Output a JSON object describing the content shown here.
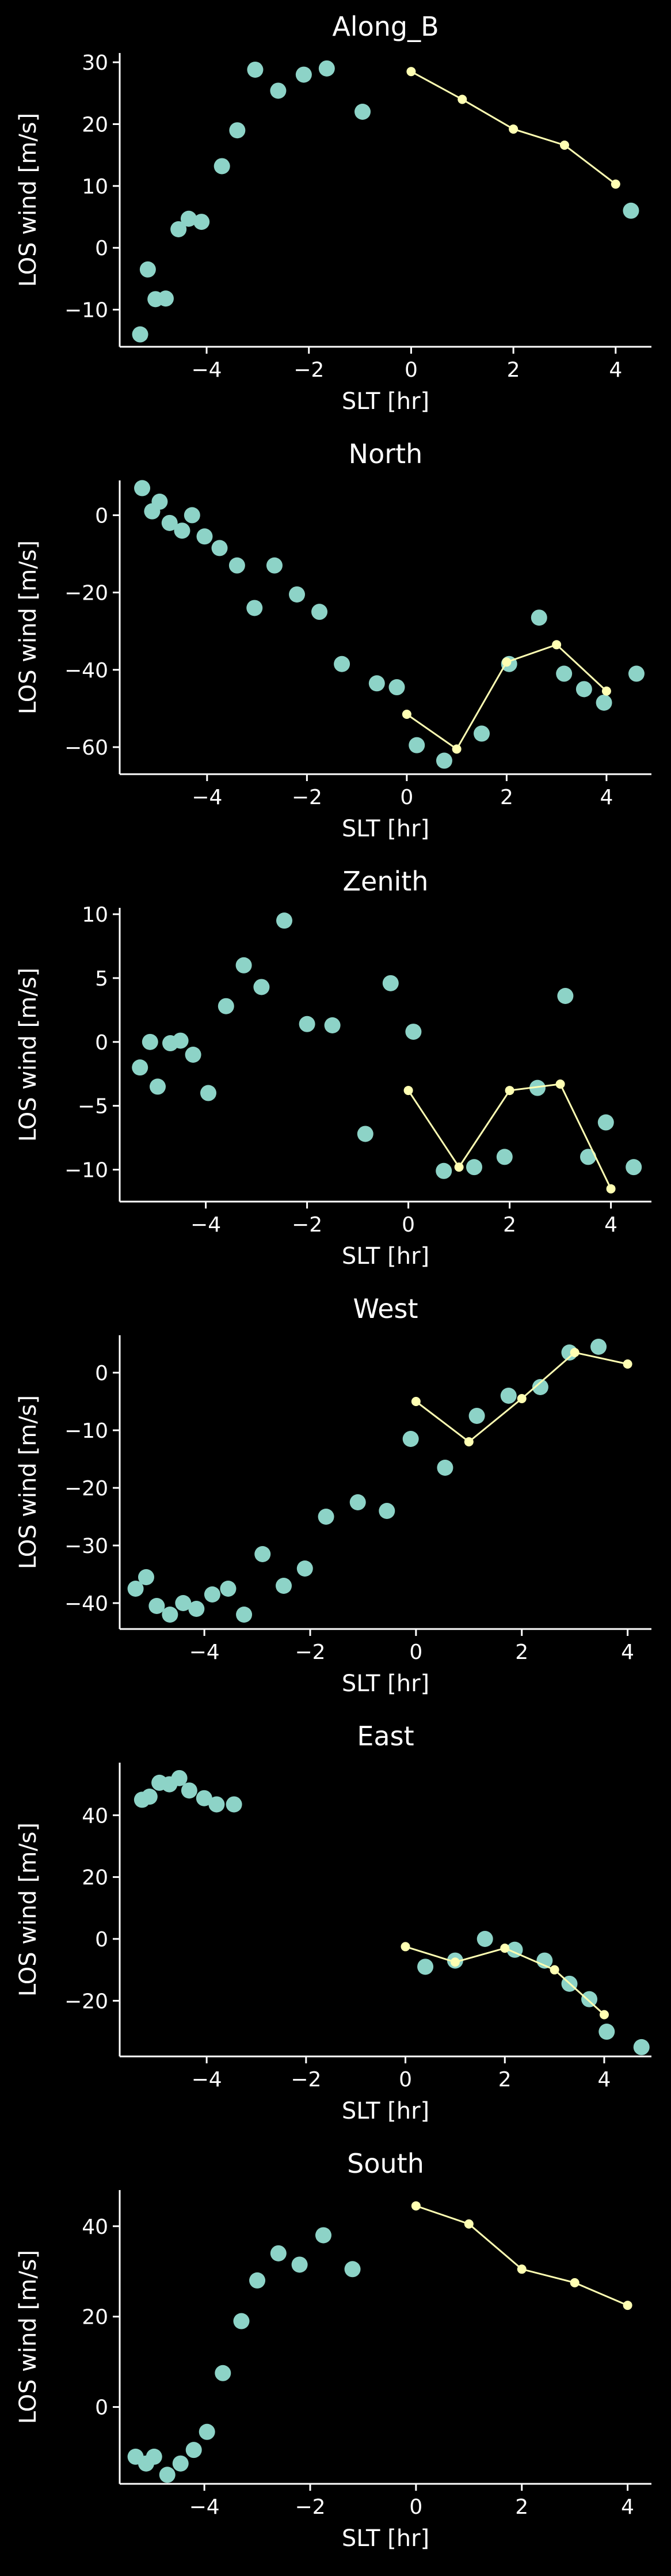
{
  "colors": {
    "background": "#000000",
    "axes": "#ffffff",
    "scatter": "#8dd3c7",
    "line": "#ffffb3"
  },
  "chart_data": [
    {
      "type": "scatter",
      "title": "Along_B",
      "xlabel": "SLT [hr]",
      "ylabel": "LOS wind [m/s]",
      "xlim": [
        -5.7,
        4.7
      ],
      "ylim": [
        -16,
        31.5
      ],
      "xticks": [
        -4,
        -2,
        0,
        2,
        4
      ],
      "yticks": [
        -10,
        0,
        10,
        20,
        30
      ],
      "grid": false,
      "series": [
        {
          "mode": "markers",
          "x": [
            -5.3,
            -5.15,
            -5.0,
            -4.8,
            -4.55,
            -4.35,
            -4.1,
            -3.7,
            -3.4,
            -3.05,
            -2.6,
            -2.1,
            -1.65,
            -0.95,
            4.3
          ],
          "y": [
            -14,
            -3.5,
            -8.3,
            -8.2,
            3,
            4.7,
            4.2,
            13.2,
            19,
            28.8,
            25.4,
            28,
            29,
            22,
            6
          ]
        },
        {
          "mode": "lines+markers",
          "x": [
            0,
            1,
            2,
            3,
            4
          ],
          "y": [
            28.5,
            24,
            19.2,
            16.6,
            10.3
          ]
        }
      ]
    },
    {
      "type": "scatter",
      "title": "North",
      "xlabel": "SLT [hr]",
      "ylabel": "LOS wind [m/s]",
      "xlim": [
        -5.75,
        4.9
      ],
      "ylim": [
        -67,
        9
      ],
      "xticks": [
        -4,
        -2,
        0,
        2,
        4
      ],
      "yticks": [
        -60,
        -40,
        -20,
        0
      ],
      "grid": false,
      "series": [
        {
          "mode": "markers",
          "x": [
            -5.3,
            -5.1,
            -4.95,
            -4.75,
            -4.5,
            -4.3,
            -4.05,
            -3.75,
            -3.4,
            -3.05,
            -2.65,
            -2.2,
            -1.75,
            -1.3,
            -0.6,
            -0.2,
            0.2,
            0.75,
            1.5,
            2.05,
            2.65,
            3.15,
            3.55,
            3.95,
            4.6
          ],
          "y": [
            7,
            1,
            3.5,
            -2,
            -4,
            0,
            -5.5,
            -8.5,
            -13,
            -24,
            -13,
            -20.5,
            -25,
            -38.5,
            -43.5,
            -44.5,
            -59.5,
            -63.5,
            -56.5,
            -38.5,
            -26.5,
            -41,
            -45,
            -48.5,
            -41
          ]
        },
        {
          "mode": "lines+markers",
          "x": [
            0,
            1,
            2,
            3,
            4
          ],
          "y": [
            -51.5,
            -60.5,
            -38,
            -33.5,
            -45.5
          ]
        }
      ]
    },
    {
      "type": "scatter",
      "title": "Zenith",
      "xlabel": "SLT [hr]",
      "ylabel": "LOS wind [m/s]",
      "xlim": [
        -5.7,
        4.8
      ],
      "ylim": [
        -12.5,
        10.5
      ],
      "xticks": [
        -4,
        -2,
        0,
        2,
        4
      ],
      "yticks": [
        -10,
        -5,
        0,
        5,
        10
      ],
      "grid": false,
      "series": [
        {
          "mode": "markers",
          "x": [
            -5.3,
            -5.1,
            -4.95,
            -4.7,
            -4.5,
            -4.25,
            -3.95,
            -3.6,
            -3.25,
            -2.9,
            -2.45,
            -2.0,
            -1.5,
            -0.85,
            -0.35,
            0.1,
            0.7,
            1.3,
            1.9,
            2.55,
            3.1,
            3.55,
            3.9,
            4.45
          ],
          "y": [
            -2,
            0,
            -3.5,
            -0.1,
            0.1,
            -1,
            -4,
            2.8,
            6,
            4.3,
            9.5,
            1.4,
            1.3,
            -7.2,
            4.6,
            0.8,
            -10.1,
            -9.8,
            -9,
            -3.6,
            3.6,
            -9,
            -6.3,
            -9.8
          ]
        },
        {
          "mode": "lines+markers",
          "x": [
            0,
            1,
            2,
            3,
            4
          ],
          "y": [
            -3.8,
            -9.8,
            -3.8,
            -3.3,
            -11.5
          ]
        }
      ]
    },
    {
      "type": "scatter",
      "title": "West",
      "xlabel": "SLT [hr]",
      "ylabel": "LOS wind [m/s]",
      "xlim": [
        -5.6,
        4.45
      ],
      "ylim": [
        -44.5,
        6.5
      ],
      "xticks": [
        -4,
        -2,
        0,
        2,
        4
      ],
      "yticks": [
        -40,
        -30,
        -20,
        -10,
        0
      ],
      "grid": false,
      "series": [
        {
          "mode": "markers",
          "x": [
            -5.3,
            -5.1,
            -4.9,
            -4.65,
            -4.4,
            -4.15,
            -3.85,
            -3.55,
            -3.25,
            -2.9,
            -2.5,
            -2.1,
            -1.7,
            -1.1,
            -0.55,
            -0.1,
            0.55,
            1.15,
            1.75,
            2.35,
            2.9,
            3.45
          ],
          "y": [
            -37.5,
            -35.5,
            -40.5,
            -42,
            -40,
            -41,
            -38.5,
            -37.5,
            -42,
            -31.5,
            -37,
            -34,
            -25,
            -22.5,
            -24,
            -11.5,
            -16.5,
            -7.5,
            -4,
            -2.5,
            3.5,
            4.5
          ]
        },
        {
          "mode": "lines+markers",
          "x": [
            0,
            1,
            2,
            3,
            4
          ],
          "y": [
            -5,
            -12,
            -4.5,
            3.5,
            1.5
          ]
        }
      ]
    },
    {
      "type": "scatter",
      "title": "East",
      "xlabel": "SLT [hr]",
      "ylabel": "LOS wind [m/s]",
      "xlim": [
        -5.75,
        4.95
      ],
      "ylim": [
        -38,
        57
      ],
      "xticks": [
        -4,
        -2,
        0,
        2,
        4
      ],
      "yticks": [
        -20,
        0,
        20,
        40
      ],
      "grid": false,
      "series": [
        {
          "mode": "markers",
          "x": [
            -5.3,
            -5.15,
            -4.95,
            -4.75,
            -4.55,
            -4.35,
            -4.05,
            -3.8,
            -3.45,
            0.4,
            1.0,
            1.6,
            2.2,
            2.8,
            3.3,
            3.7,
            4.05,
            4.75
          ],
          "y": [
            45,
            46,
            50.5,
            50,
            52,
            48,
            45.5,
            43.5,
            43.5,
            -9,
            -7,
            0,
            -3.5,
            -7,
            -14.5,
            -19.5,
            -30,
            -35
          ]
        },
        {
          "mode": "lines+markers",
          "x": [
            0,
            1,
            2,
            3,
            4
          ],
          "y": [
            -2.5,
            -7.5,
            -3,
            -10,
            -24.5
          ]
        }
      ]
    },
    {
      "type": "scatter",
      "title": "South",
      "xlabel": "SLT [hr]",
      "ylabel": "LOS wind [m/s]",
      "xlim": [
        -5.6,
        4.45
      ],
      "ylim": [
        -17,
        48
      ],
      "xticks": [
        -4,
        -2,
        0,
        2,
        4
      ],
      "yticks": [
        0,
        20,
        40
      ],
      "grid": false,
      "series": [
        {
          "mode": "markers",
          "x": [
            -5.3,
            -5.1,
            -4.95,
            -4.7,
            -4.45,
            -4.2,
            -3.95,
            -3.65,
            -3.3,
            -3.0,
            -2.6,
            -2.2,
            -1.75,
            -1.2
          ],
          "y": [
            -11,
            -12.5,
            -11,
            -15,
            -12.5,
            -9.5,
            -5.5,
            7.5,
            19,
            28,
            34,
            31.5,
            38,
            30.5
          ]
        },
        {
          "mode": "lines+markers",
          "x": [
            0,
            1,
            2,
            3,
            4
          ],
          "y": [
            44.5,
            40.5,
            30.5,
            27.5,
            22.5
          ]
        }
      ]
    }
  ]
}
